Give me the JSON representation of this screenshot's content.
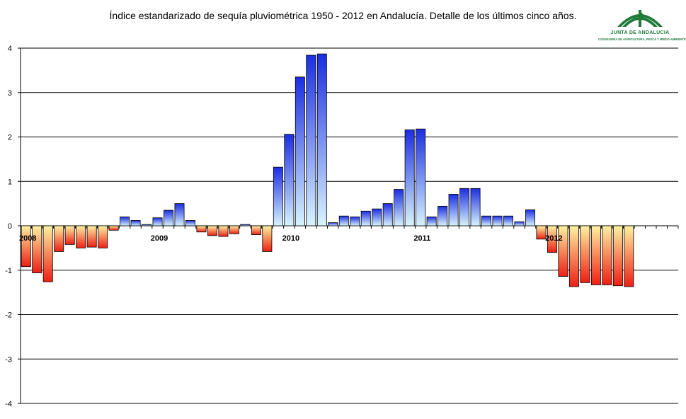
{
  "chart_data": {
    "type": "bar",
    "title": "Índice estandarizado de sequía pluviométrica 1950 - 2012 en Andalucía. Detalle de los últimos cinco años.",
    "xlabel": "",
    "ylabel": "",
    "ylim": [
      -4,
      4
    ],
    "yticks": [
      4,
      3,
      2,
      1,
      0,
      -1,
      -2,
      -3,
      -4
    ],
    "grid": true,
    "legend": "none",
    "year_labels": [
      {
        "label": "2008",
        "index": 0
      },
      {
        "label": "2009",
        "index": 12
      },
      {
        "label": "2010",
        "index": 24
      },
      {
        "label": "2011",
        "index": 36
      },
      {
        "label": "2012",
        "index": 48
      }
    ],
    "months": 60,
    "values": [
      -0.92,
      -1.06,
      -1.26,
      -0.58,
      -0.42,
      -0.5,
      -0.48,
      -0.5,
      -0.1,
      0.2,
      0.12,
      0.03,
      0.18,
      0.35,
      0.5,
      0.12,
      -0.14,
      -0.22,
      -0.24,
      -0.18,
      0.03,
      -0.2,
      -0.58,
      1.32,
      2.06,
      3.35,
      3.84,
      3.87,
      0.07,
      0.22,
      0.2,
      0.33,
      0.38,
      0.5,
      0.82,
      2.16,
      2.18,
      0.2,
      0.44,
      0.71,
      0.84,
      0.84,
      0.22,
      0.22,
      0.22,
      0.09,
      0.36,
      -0.3,
      -0.6,
      -1.14,
      -1.37,
      -1.28,
      -1.33,
      -1.33,
      -1.35,
      -1.37,
      null,
      null,
      null,
      null
    ],
    "colors": {
      "positive_top": "#1c2ee0",
      "positive_bottom": "#d8f4ff",
      "negative_top": "#fff2a0",
      "negative_bottom": "#ee1e14",
      "grid": "#000000"
    }
  },
  "logo": {
    "org": "JUNTA DE ANDALUCIA",
    "dept": "CONSEJERÍA DE AGRICULTURA, PESCA Y MEDIO AMBIENTE",
    "color": "#1f7a3a"
  }
}
